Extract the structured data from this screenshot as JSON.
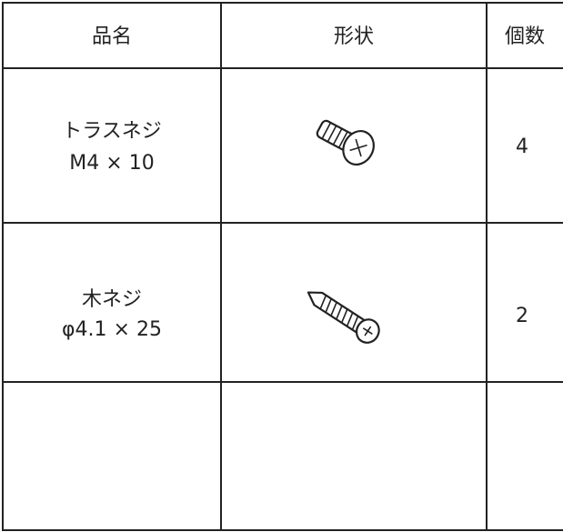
{
  "table": {
    "header": [
      "品名",
      "形状",
      "個数"
    ],
    "rows": [
      {
        "name": [
          "トラスネジ",
          "M4 × 10"
        ],
        "count": 4
      },
      {
        "name": [
          "木ネジ",
          "φ4.1 × 25"
        ],
        "count": 2
      }
    ]
  }
}
